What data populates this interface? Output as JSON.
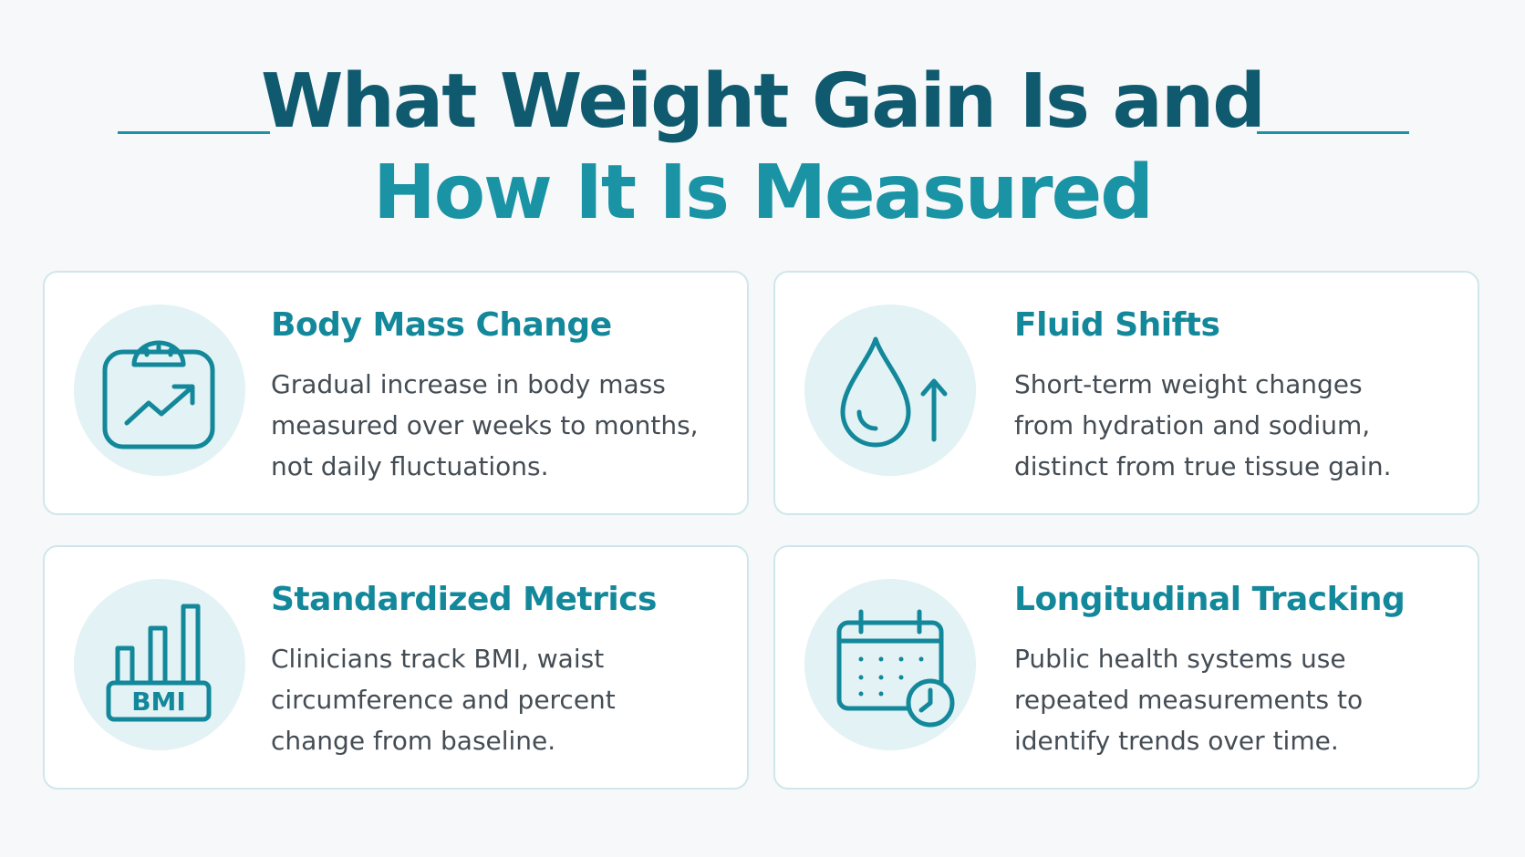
{
  "title": {
    "line1": "What Weight Gain Is and",
    "line2": "How It Is Measured"
  },
  "colors": {
    "title_dark": "#0f5a6f",
    "title_accent": "#1a93a5",
    "card_title": "#13889b",
    "icon_bg": "#e3f2f4",
    "card_border": "#cfe7ec",
    "body_text": "#444c54"
  },
  "cards": [
    {
      "icon": "scale-trend-icon",
      "title": "Body Mass Change",
      "lines": [
        "Gradual increase in body mass",
        "measured over weeks to months,",
        "not daily fluctuations."
      ]
    },
    {
      "icon": "water-drop-up-arrow-icon",
      "title": "Fluid Shifts",
      "lines": [
        "Short-term weight changes",
        "from hydration and sodium,",
        "distinct from true tissue gain."
      ]
    },
    {
      "icon": "bmi-bar-chart-icon",
      "icon_text": "BMI",
      "title": "Standardized Metrics",
      "lines": [
        "Clinicians track BMI, waist",
        "circumference and percent",
        "change from baseline."
      ]
    },
    {
      "icon": "calendar-clock-icon",
      "title": "Longitudinal Tracking",
      "lines": [
        "Public health systems use",
        "repeated measurements to",
        "identify trends over time."
      ]
    }
  ]
}
